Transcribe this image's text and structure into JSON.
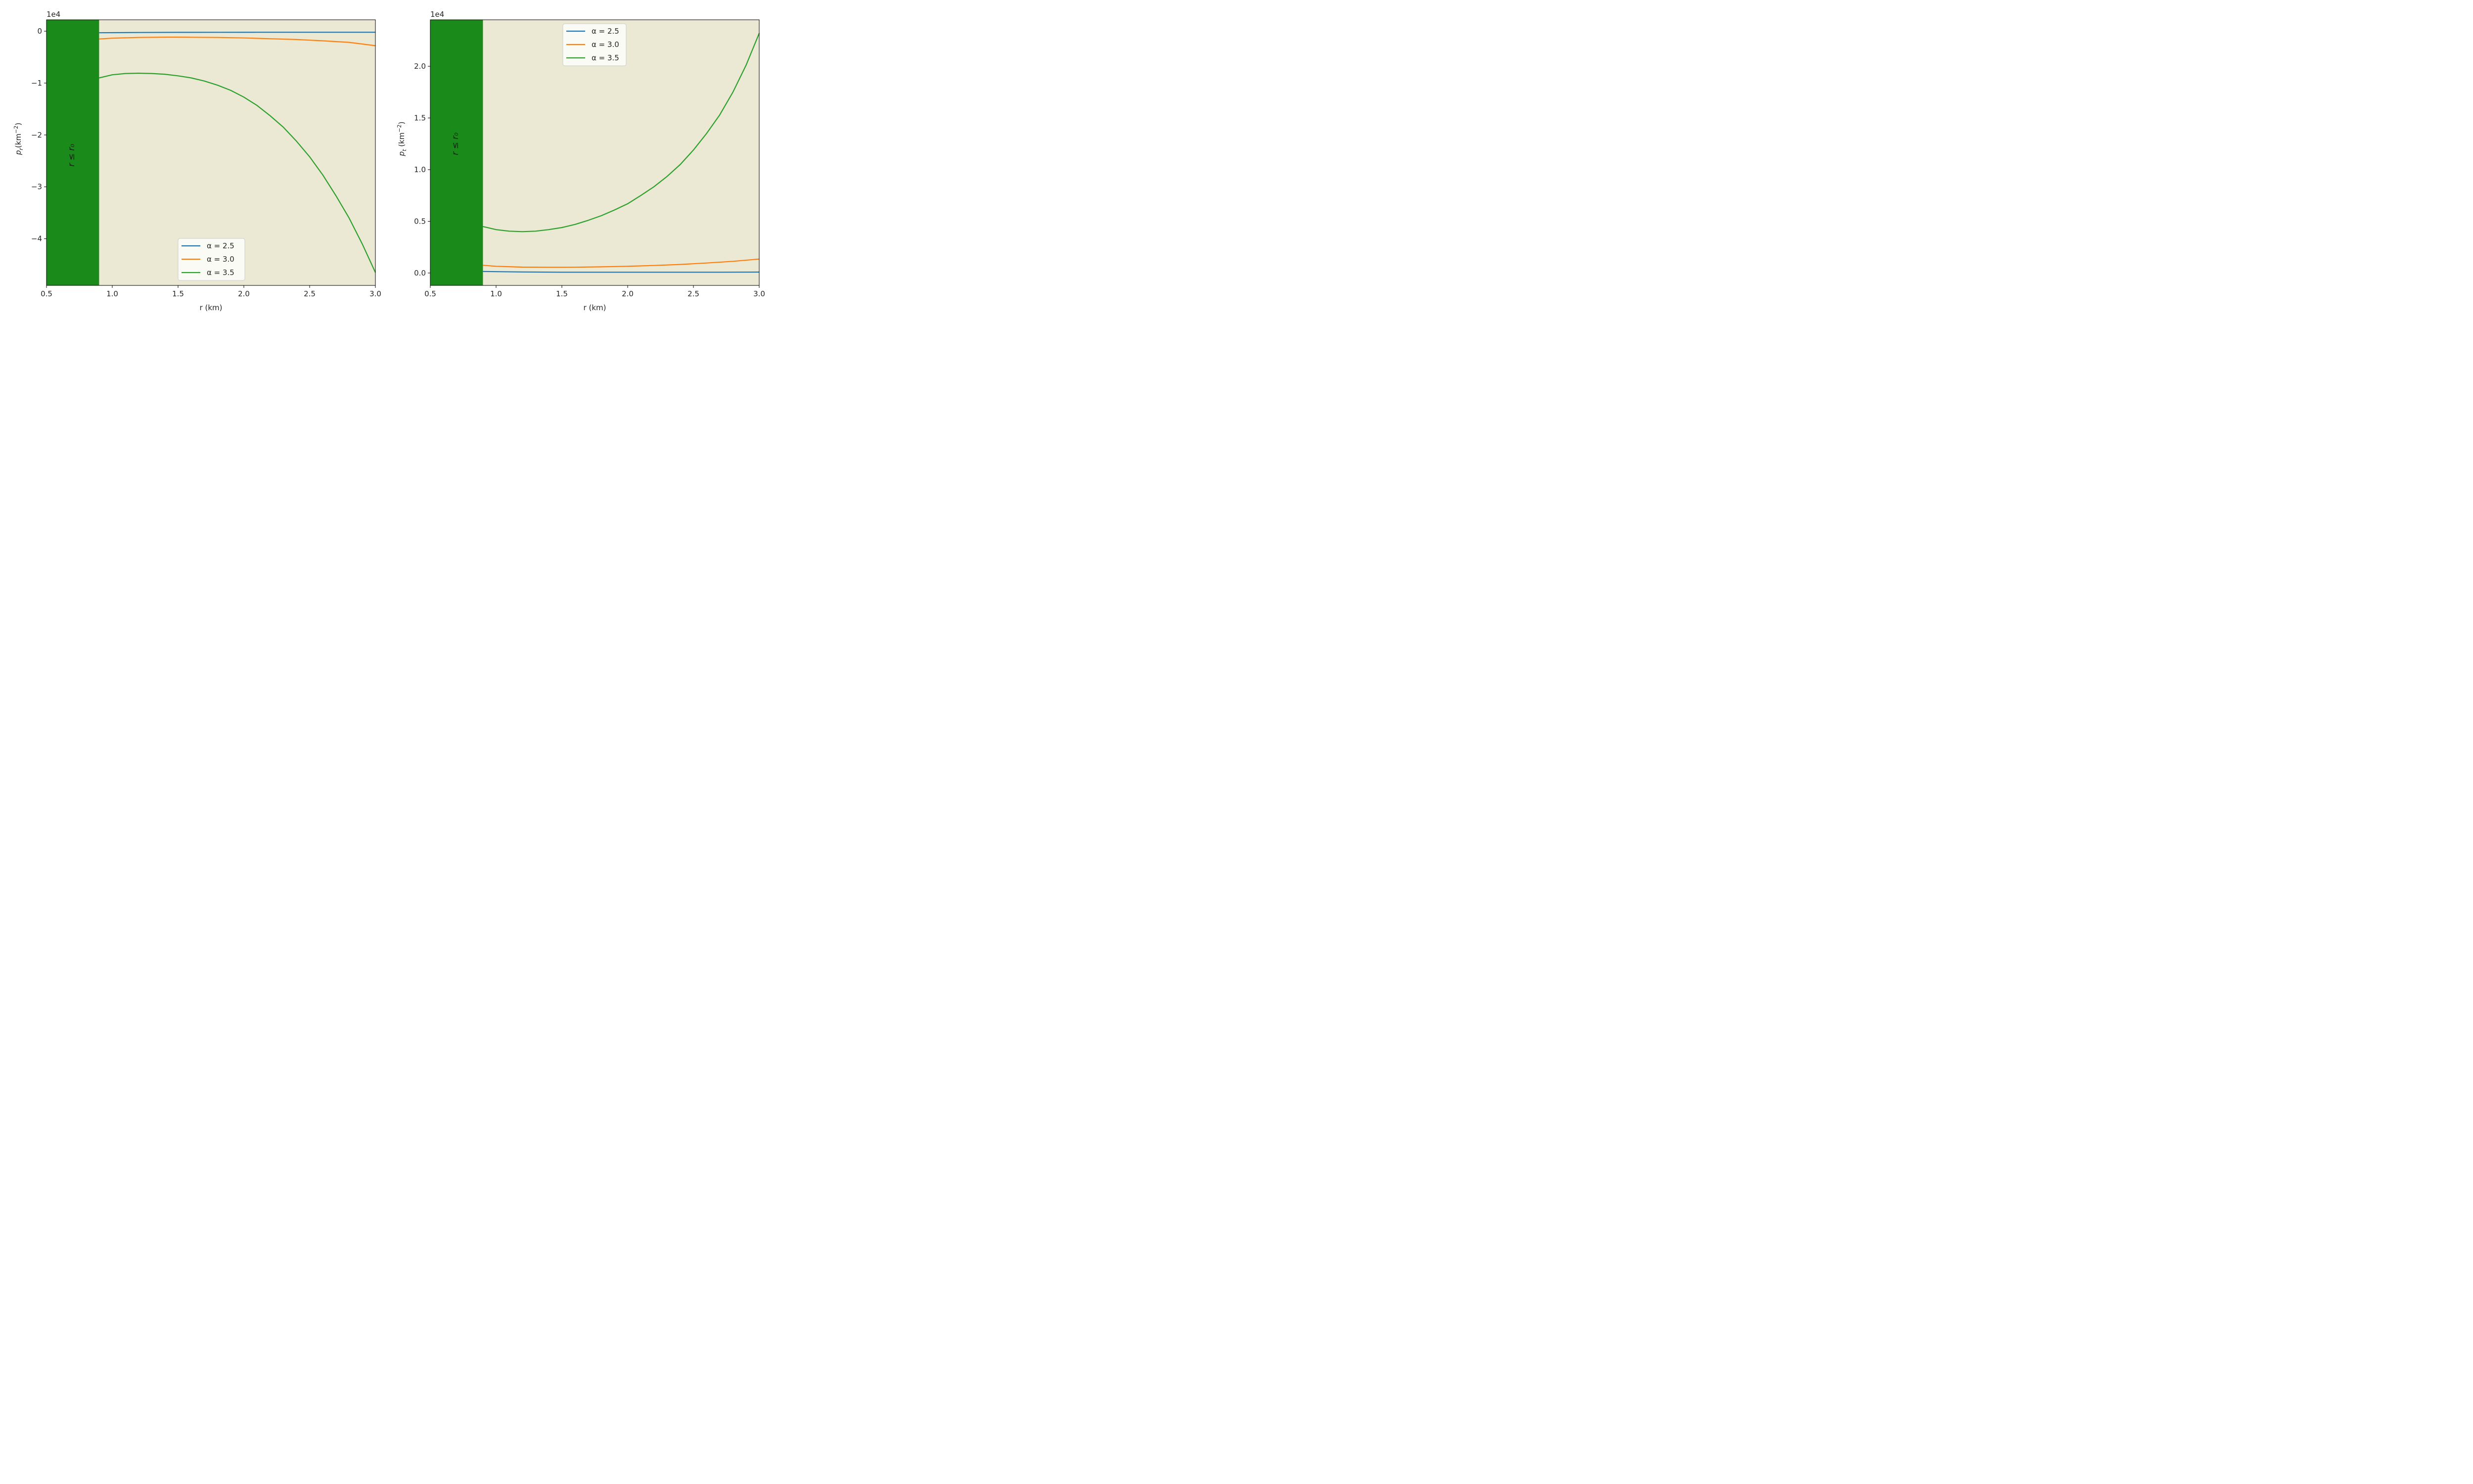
{
  "chart_data": [
    {
      "type": "line",
      "id": "left",
      "xlabel": "r (km)",
      "ylabel_main": "p",
      "ylabel_sub": "r",
      "ylabel_unit": "(km",
      "ylabel_exp": "−2",
      "ylabel_close": ")",
      "offset_text": "1e4",
      "xlim": [
        0.5,
        3.0
      ],
      "ylim": [
        -4.9,
        0.22
      ],
      "y_scale_factor": 10000,
      "xticks": [
        0.5,
        1.0,
        1.5,
        2.0,
        2.5,
        3.0
      ],
      "xtick_labels": [
        "0.5",
        "1.0",
        "1.5",
        "2.0",
        "2.5",
        "3.0"
      ],
      "yticks": [
        0,
        -1,
        -2,
        -3,
        -4
      ],
      "ytick_labels": [
        "0",
        "−1",
        "−2",
        "−3",
        "−4"
      ],
      "background_color": "#ebe8d3",
      "region": {
        "x_from": 0.5,
        "x_to": 0.9,
        "color": "#1a8a1a",
        "label": "r ≤ r₀"
      },
      "legend_position": "lower center",
      "series": [
        {
          "name": "α = 2.5",
          "color": "#1f77b4",
          "x": [
            0.9,
            1.2,
            1.5,
            1.8,
            2.1,
            2.4,
            2.7,
            3.0
          ],
          "y": [
            -0.03,
            -0.025,
            -0.022,
            -0.021,
            -0.02,
            -0.02,
            -0.02,
            -0.02
          ]
        },
        {
          "name": "α = 3.0",
          "color": "#ff7f0e",
          "x": [
            0.9,
            1.0,
            1.2,
            1.4,
            1.5,
            1.6,
            1.8,
            2.0,
            2.2,
            2.4,
            2.6,
            2.8,
            3.0
          ],
          "y": [
            -0.15,
            -0.135,
            -0.12,
            -0.115,
            -0.115,
            -0.117,
            -0.12,
            -0.13,
            -0.145,
            -0.16,
            -0.185,
            -0.215,
            -0.28
          ]
        },
        {
          "name": "α = 3.5",
          "color": "#2ca02c",
          "x": [
            0.9,
            1.0,
            1.1,
            1.2,
            1.3,
            1.4,
            1.5,
            1.6,
            1.7,
            1.8,
            1.9,
            2.0,
            2.1,
            2.2,
            2.3,
            2.4,
            2.5,
            2.6,
            2.7,
            2.8,
            2.9,
            3.0
          ],
          "y": [
            -0.9,
            -0.84,
            -0.815,
            -0.81,
            -0.815,
            -0.83,
            -0.86,
            -0.9,
            -0.96,
            -1.04,
            -1.14,
            -1.27,
            -1.43,
            -1.63,
            -1.85,
            -2.12,
            -2.42,
            -2.77,
            -3.17,
            -3.6,
            -4.1,
            -4.65
          ]
        }
      ]
    },
    {
      "type": "line",
      "id": "right",
      "xlabel": "r (km)",
      "ylabel_main": "p",
      "ylabel_sub": "t",
      "ylabel_unit": " (km",
      "ylabel_exp": "−2",
      "ylabel_close": ")",
      "offset_text": "1e4",
      "xlim": [
        0.5,
        3.0
      ],
      "ylim": [
        -0.12,
        2.45
      ],
      "y_scale_factor": 10000,
      "xticks": [
        0.5,
        1.0,
        1.5,
        2.0,
        2.5,
        3.0
      ],
      "xtick_labels": [
        "0.5",
        "1.0",
        "1.5",
        "2.0",
        "2.5",
        "3.0"
      ],
      "yticks": [
        0.0,
        0.5,
        1.0,
        1.5,
        2.0
      ],
      "ytick_labels": [
        "0.0",
        "0.5",
        "1.0",
        "1.5",
        "2.0"
      ],
      "background_color": "#ebe8d3",
      "region": {
        "x_from": 0.5,
        "x_to": 0.9,
        "color": "#1a8a1a",
        "label": "r ≤ r₀"
      },
      "legend_position": "upper center",
      "series": [
        {
          "name": "α = 2.5",
          "color": "#1f77b4",
          "x": [
            0.9,
            1.2,
            1.5,
            1.8,
            2.1,
            2.4,
            2.7,
            3.0
          ],
          "y": [
            0.015,
            0.01,
            0.008,
            0.008,
            0.008,
            0.008,
            0.008,
            0.009
          ]
        },
        {
          "name": "α = 3.0",
          "color": "#ff7f0e",
          "x": [
            0.9,
            1.0,
            1.2,
            1.4,
            1.5,
            1.6,
            1.8,
            2.0,
            2.2,
            2.4,
            2.6,
            2.8,
            3.0
          ],
          "y": [
            0.075,
            0.065,
            0.057,
            0.055,
            0.055,
            0.056,
            0.06,
            0.065,
            0.073,
            0.083,
            0.097,
            0.113,
            0.135
          ]
        },
        {
          "name": "α = 3.5",
          "color": "#2ca02c",
          "x": [
            0.9,
            1.0,
            1.1,
            1.2,
            1.3,
            1.4,
            1.5,
            1.6,
            1.7,
            1.8,
            1.9,
            2.0,
            2.1,
            2.2,
            2.3,
            2.4,
            2.5,
            2.6,
            2.7,
            2.8,
            2.9,
            3.0
          ],
          "y": [
            0.45,
            0.42,
            0.405,
            0.4,
            0.405,
            0.42,
            0.44,
            0.47,
            0.51,
            0.555,
            0.61,
            0.67,
            0.75,
            0.835,
            0.935,
            1.05,
            1.19,
            1.35,
            1.53,
            1.75,
            2.01,
            2.32
          ]
        }
      ]
    }
  ]
}
